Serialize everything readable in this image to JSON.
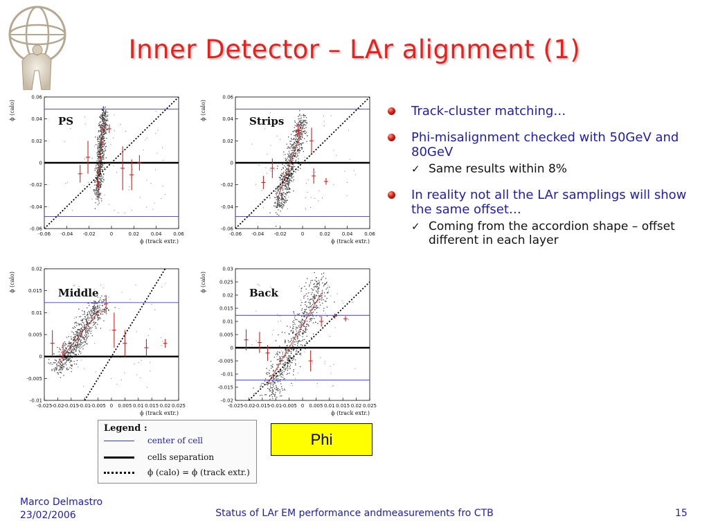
{
  "slide": {
    "title": "Inner Detector – LAr alignment (1)",
    "phi_label": "Phi",
    "bullets": [
      {
        "text": "Track-cluster matching…",
        "sub": []
      },
      {
        "text": "Phi-misalignment checked with 50GeV and 80GeV",
        "sub": [
          "Same results within 8%"
        ]
      },
      {
        "text": "In reality not all the LAr samplings will show the same offset…",
        "sub": [
          "Coming from the accordion shape – offset different in each layer"
        ]
      }
    ],
    "footer": {
      "author": "Marco Delmastro",
      "date": "23/02/2006",
      "center": "Status of LAr EM performance andmeasurements fro CTB",
      "page": "15"
    },
    "legend": {
      "title": "Legend :",
      "items": [
        {
          "label": "center of cell",
          "style": "thin-blue"
        },
        {
          "label": "cells separation",
          "style": "thick-black"
        },
        {
          "label": "ϕ (calo) = ϕ (track extr.)",
          "style": "dotted-black"
        }
      ]
    },
    "colors": {
      "title": "#e8211d",
      "bullet_text": "#1c1cb8",
      "phi_box": "#ffff00",
      "center_line": "#3a3ad0",
      "error_bars": "#d62020"
    }
  },
  "chart_data": [
    {
      "type": "scatter",
      "title": "PS",
      "xlabel": "ϕ (track extr.)",
      "ylabel": "ϕ (calo)",
      "xlim": [
        -0.06,
        0.06
      ],
      "ylim": [
        -0.06,
        0.06
      ],
      "xticks": [
        "-0.06",
        "-0.04",
        "-0.02",
        "0",
        "0.02",
        "0.04",
        "0.06"
      ],
      "xtick_values": [
        -0.06,
        -0.04,
        -0.02,
        0,
        0.02,
        0.04,
        0.06
      ],
      "yticks": [
        "-0.06",
        "-0.04",
        "-0.02",
        "0",
        "0.02",
        "0.04",
        "0.06"
      ],
      "ytick_values": [
        -0.06,
        -0.04,
        -0.02,
        0,
        0.02,
        0.04,
        0.06
      ],
      "center_lines": [
        0.049,
        -0.049
      ],
      "separation_lines": [
        0
      ],
      "cluster": {
        "x0": -0.013,
        "x1": -0.007,
        "y0": -0.03,
        "y1": 0.046
      },
      "error_bars": [
        {
          "x": -0.028,
          "y": -0.01,
          "e": 0.008
        },
        {
          "x": -0.021,
          "y": 0.005,
          "e": 0.015
        },
        {
          "x": -0.012,
          "y": -0.02,
          "e": 0.012
        },
        {
          "x": -0.002,
          "y": 0.031,
          "e": 0.004
        },
        {
          "x": 0.01,
          "y": -0.005,
          "e": 0.02
        },
        {
          "x": 0.018,
          "y": -0.011,
          "e": 0.014
        },
        {
          "x": 0.025,
          "y": 0.0,
          "e": 0.007
        }
      ]
    },
    {
      "type": "scatter",
      "title": "Strips",
      "xlabel": "ϕ (track extr.)",
      "ylabel": "ϕ (calo)",
      "xlim": [
        -0.06,
        0.06
      ],
      "ylim": [
        -0.06,
        0.06
      ],
      "xticks": [
        "-0.06",
        "-0.04",
        "-0.02",
        "0",
        "0.02",
        "0.04",
        "0.06"
      ],
      "xtick_values": [
        -0.06,
        -0.04,
        -0.02,
        0,
        0.02,
        0.04,
        0.06
      ],
      "yticks": [
        "-0.06",
        "-0.04",
        "-0.02",
        "0",
        "0.02",
        "0.04",
        "0.06"
      ],
      "ytick_values": [
        -0.06,
        -0.04,
        -0.02,
        0,
        0.02,
        0.04,
        0.06
      ],
      "center_lines": [
        0.049,
        -0.049
      ],
      "separation_lines": [
        0
      ],
      "cluster": {
        "x0": -0.022,
        "x1": 0.0,
        "y0": -0.04,
        "y1": 0.04
      },
      "error_bars": [
        {
          "x": -0.035,
          "y": -0.018,
          "e": 0.006
        },
        {
          "x": -0.027,
          "y": -0.005,
          "e": 0.009
        },
        {
          "x": -0.004,
          "y": 0.03,
          "e": 0.005
        },
        {
          "x": 0.008,
          "y": 0.02,
          "e": 0.012
        },
        {
          "x": 0.01,
          "y": -0.012,
          "e": 0.007
        },
        {
          "x": 0.021,
          "y": -0.017,
          "e": 0.003
        }
      ]
    },
    {
      "type": "scatter",
      "title": "Middle",
      "xlabel": "ϕ (track extr.)",
      "ylabel": "ϕ (calo)",
      "xlim": [
        -0.025,
        0.025
      ],
      "ylim": [
        -0.01,
        0.02
      ],
      "xticks": [
        "-0.025",
        "-0.02",
        "-0.015",
        "-0.01",
        "-0.005",
        "0",
        "0.005",
        "0.01",
        "0.015",
        "0.02",
        "0.025"
      ],
      "xtick_values": [
        -0.025,
        -0.02,
        -0.015,
        -0.01,
        -0.005,
        0,
        0.005,
        0.01,
        0.015,
        0.02,
        0.025
      ],
      "yticks": [
        "-0.01",
        "-0.005",
        "0",
        "0.005",
        "0.01",
        "0.015",
        "0.02"
      ],
      "ytick_values": [
        -0.01,
        -0.005,
        0,
        0.005,
        0.01,
        0.015,
        0.02
      ],
      "center_lines": [
        0.0123
      ],
      "separation_lines": [
        0
      ],
      "cluster": {
        "x0": -0.02,
        "x1": -0.004,
        "y0": -0.003,
        "y1": 0.0125
      },
      "error_bars": [
        {
          "x": -0.022,
          "y": 0.003,
          "e": 0.003
        },
        {
          "x": -0.018,
          "y": 0.001,
          "e": 0.002
        },
        {
          "x": -0.002,
          "y": 0.012,
          "e": 0.002
        },
        {
          "x": 0.001,
          "y": 0.006,
          "e": 0.004
        },
        {
          "x": 0.005,
          "y": 0.003,
          "e": 0.003
        },
        {
          "x": 0.013,
          "y": 0.002,
          "e": 0.002
        },
        {
          "x": 0.02,
          "y": 0.003,
          "e": 0.001
        }
      ]
    },
    {
      "type": "scatter",
      "title": "Back",
      "xlabel": "ϕ (track extr.)",
      "ylabel": "ϕ (calo)",
      "xlim": [
        -0.025,
        0.025
      ],
      "ylim": [
        -0.02,
        0.03
      ],
      "xticks": [
        "-0.025",
        "-0.02",
        "-0.015",
        "-0.01",
        "-0.005",
        "0",
        "0.005",
        "0.01",
        "0.015",
        "0.02",
        "0.025"
      ],
      "xtick_values": [
        -0.025,
        -0.02,
        -0.015,
        -0.01,
        -0.005,
        0,
        0.005,
        0.01,
        0.015,
        0.02,
        0.025
      ],
      "yticks": [
        "-0.02",
        "-0.015",
        "-0.01",
        "-0.005",
        "0",
        "0.005",
        "0.01",
        "0.015",
        "0.02",
        "0.025",
        "0.03"
      ],
      "ytick_values": [
        -0.02,
        -0.015,
        -0.01,
        -0.005,
        0,
        0.005,
        0.01,
        0.015,
        0.02,
        0.025,
        0.03
      ],
      "center_lines": [
        0.0123,
        -0.0123
      ],
      "separation_lines": [
        0
      ],
      "cluster": {
        "x0": -0.013,
        "x1": 0.007,
        "y0": -0.018,
        "y1": 0.025
      },
      "error_bars": [
        {
          "x": -0.021,
          "y": 0.003,
          "e": 0.004
        },
        {
          "x": -0.016,
          "y": 0.002,
          "e": 0.004
        },
        {
          "x": -0.013,
          "y": -0.002,
          "e": 0.003
        },
        {
          "x": 0.003,
          "y": -0.005,
          "e": 0.004
        },
        {
          "x": 0.007,
          "y": 0.01,
          "e": 0.002
        },
        {
          "x": 0.012,
          "y": 0.012,
          "e": 0.001
        },
        {
          "x": 0.016,
          "y": 0.011,
          "e": 0.001
        }
      ]
    }
  ]
}
